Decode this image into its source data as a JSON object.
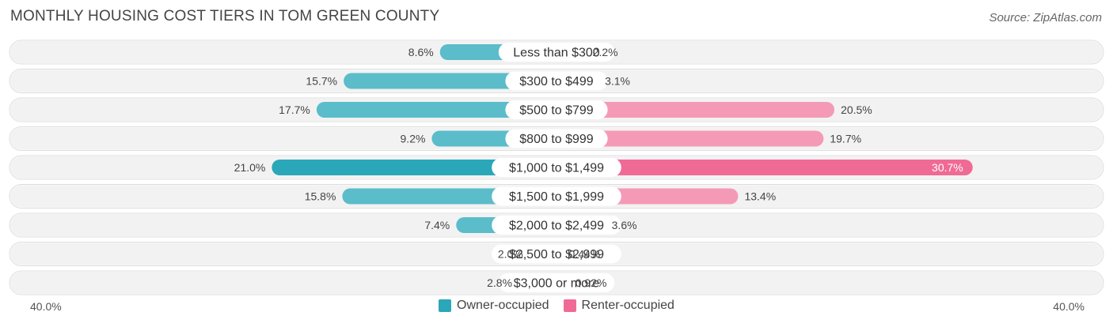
{
  "title": "MONTHLY HOUSING COST TIERS IN TOM GREEN COUNTY",
  "source": "Source: ZipAtlas.com",
  "colors": {
    "owner": "#5bbcca",
    "owner_strong": "#2aa7b8",
    "renter": "#f59ab6",
    "renter_strong": "#f06a96",
    "row_bg": "#f2f2f2"
  },
  "chart_data": {
    "type": "bar",
    "orientation": "diverging-horizontal",
    "title": "MONTHLY HOUSING COST TIERS IN TOM GREEN COUNTY",
    "categories": [
      "Less than $300",
      "$300 to $499",
      "$500 to $799",
      "$800 to $999",
      "$1,000 to $1,499",
      "$1,500 to $1,999",
      "$2,000 to $2,499",
      "$2,500 to $2,999",
      "$3,000 or more"
    ],
    "series": [
      {
        "name": "Owner-occupied",
        "values": [
          8.6,
          15.7,
          17.7,
          9.2,
          21.0,
          15.8,
          7.4,
          2.0,
          2.8
        ],
        "labels": [
          "8.6%",
          "15.7%",
          "17.7%",
          "9.2%",
          "21.0%",
          "15.8%",
          "7.4%",
          "2.0%",
          "2.8%"
        ]
      },
      {
        "name": "Renter-occupied",
        "values": [
          2.2,
          3.1,
          20.5,
          19.7,
          30.7,
          13.4,
          3.6,
          0.44,
          0.92
        ],
        "labels": [
          "2.2%",
          "3.1%",
          "20.5%",
          "19.7%",
          "30.7%",
          "13.4%",
          "3.6%",
          "0.44%",
          "0.92%"
        ]
      }
    ],
    "xlim": [
      -40,
      40
    ],
    "axis_labels": {
      "left": "40.0%",
      "right": "40.0%"
    },
    "legend": [
      "Owner-occupied",
      "Renter-occupied"
    ],
    "legend_position": "bottom-center"
  }
}
